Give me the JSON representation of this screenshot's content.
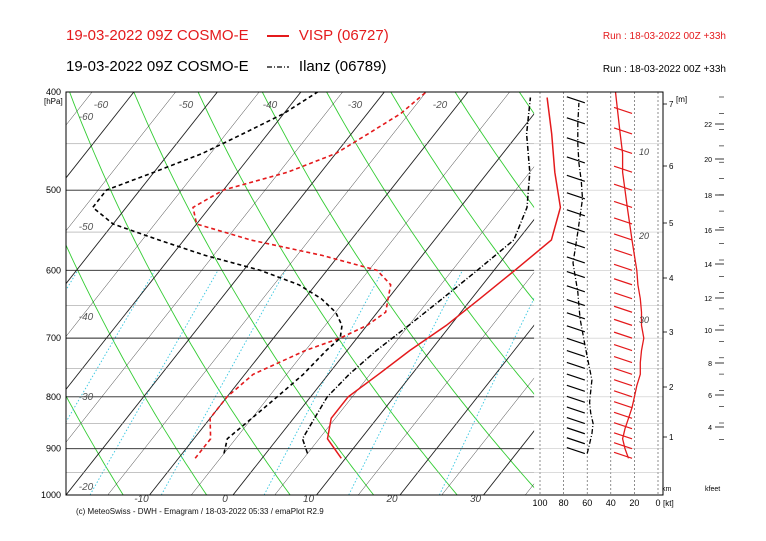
{
  "header": {
    "line1_left": "19-03-2022 09Z COSMO-E",
    "line1_station": "VISP (06727)",
    "line1_run": "Run : 18-03-2022 00Z +33h",
    "line2_left": "19-03-2022 09Z COSMO-E",
    "line2_station": "Ilanz (06789)",
    "line2_run": "Run : 18-03-2022 00Z +33h",
    "colors": {
      "visp": "#e41a1c",
      "ilanz": "#000000"
    }
  },
  "footer": "(c) MeteoSwiss - DWH - Emagram / 18-03-2022  05:33 / emaPlot R2.9",
  "chart_data": {
    "type": "line",
    "ylabel": "[hPa]",
    "ylim": [
      1000,
      400
    ],
    "pressure_ticks": [
      "400",
      "500",
      "600",
      "700",
      "800",
      "900",
      "1000"
    ],
    "pressure_values": [
      400,
      500,
      600,
      700,
      800,
      900,
      1000
    ],
    "temperature_ticks": [
      "-10",
      "0",
      "10",
      "20",
      "30"
    ],
    "temperature_values": [
      -10,
      0,
      10,
      20,
      30
    ],
    "upper_temperature_labels": [
      "-60",
      "-50",
      "-40",
      "-30",
      "-20"
    ],
    "mixing_ratio_labels": [
      "10",
      "20",
      "30"
    ],
    "km_axis": {
      "label": "[m]",
      "bottom_label": "km",
      "ticks": [
        "1",
        "2",
        "3",
        "4",
        "5",
        "6",
        "7"
      ]
    },
    "kfeet_axis": {
      "label": "kfeet",
      "ticks": [
        "4",
        "6",
        "8",
        "10",
        "12",
        "14",
        "16",
        "18",
        "20",
        "22"
      ]
    },
    "wind_axis": {
      "label": "[kt]",
      "ticks": [
        "100",
        "80",
        "60",
        "40",
        "20",
        "0"
      ]
    },
    "series": [
      {
        "name": "VISP (06727)",
        "role": "temperature",
        "color": "#e41a1c",
        "style": "solid",
        "points": [
          [
            920,
            9.5
          ],
          [
            880,
            6.0
          ],
          [
            840,
            4.5
          ],
          [
            800,
            4.5
          ],
          [
            760,
            6.0
          ],
          [
            720,
            7.5
          ],
          [
            680,
            9.5
          ],
          [
            640,
            11.0
          ],
          [
            600,
            12.5
          ],
          [
            560,
            14.0
          ],
          [
            520,
            12.0
          ],
          [
            480,
            8.0
          ],
          [
            440,
            4.0
          ],
          [
            405,
            0.0
          ]
        ]
      },
      {
        "name": "VISP (06727)",
        "role": "dewpoint",
        "color": "#e41a1c",
        "style": "dashed",
        "points": [
          [
            920,
            -8.0
          ],
          [
            880,
            -8.0
          ],
          [
            840,
            -10.0
          ],
          [
            800,
            -10.0
          ],
          [
            760,
            -9.0
          ],
          [
            720,
            -5.0
          ],
          [
            700,
            -2.0
          ],
          [
            680,
            0.0
          ],
          [
            660,
            1.0
          ],
          [
            640,
            0.0
          ],
          [
            620,
            -1.0
          ],
          [
            600,
            -4.0
          ],
          [
            580,
            -12.0
          ],
          [
            560,
            -22.0
          ],
          [
            540,
            -30.0
          ],
          [
            520,
            -32.0
          ],
          [
            500,
            -30.0
          ],
          [
            480,
            -24.0
          ],
          [
            460,
            -20.0
          ],
          [
            440,
            -18.0
          ],
          [
            420,
            -16.0
          ],
          [
            400,
            -15.0
          ]
        ]
      },
      {
        "name": "Ilanz (06789)",
        "role": "temperature",
        "color": "#000000",
        "style": "dashdot",
        "points": [
          [
            910,
            5.0
          ],
          [
            880,
            3.0
          ],
          [
            840,
            2.5
          ],
          [
            800,
            2.0
          ],
          [
            760,
            2.5
          ],
          [
            720,
            3.5
          ],
          [
            680,
            5.0
          ],
          [
            640,
            6.5
          ],
          [
            600,
            8.0
          ],
          [
            560,
            9.5
          ],
          [
            520,
            8.0
          ],
          [
            480,
            5.0
          ],
          [
            440,
            1.0
          ],
          [
            405,
            -2.0
          ]
        ]
      },
      {
        "name": "Ilanz (06789)",
        "role": "dewpoint",
        "color": "#000000",
        "style": "dashed",
        "points": [
          [
            910,
            -5.0
          ],
          [
            880,
            -6.0
          ],
          [
            840,
            -5.0
          ],
          [
            800,
            -4.0
          ],
          [
            760,
            -3.0
          ],
          [
            720,
            -2.5
          ],
          [
            700,
            -2.0
          ],
          [
            680,
            -3.0
          ],
          [
            660,
            -5.0
          ],
          [
            640,
            -8.0
          ],
          [
            620,
            -12.0
          ],
          [
            600,
            -18.0
          ],
          [
            580,
            -26.0
          ],
          [
            560,
            -33.0
          ],
          [
            540,
            -40.0
          ],
          [
            520,
            -44.0
          ],
          [
            500,
            -44.0
          ],
          [
            480,
            -40.0
          ],
          [
            460,
            -36.0
          ],
          [
            440,
            -33.0
          ],
          [
            420,
            -30.0
          ],
          [
            400,
            -28.0
          ]
        ]
      }
    ],
    "wind_profile": {
      "visp_color": "#e41a1c",
      "ilanz_color": "#000000",
      "visp_kt": [
        [
          920,
          25
        ],
        [
          900,
          28
        ],
        [
          880,
          30
        ],
        [
          860,
          28
        ],
        [
          840,
          25
        ],
        [
          820,
          22
        ],
        [
          800,
          20
        ],
        [
          780,
          18
        ],
        [
          760,
          15
        ],
        [
          740,
          15
        ],
        [
          720,
          14
        ],
        [
          700,
          12
        ],
        [
          680,
          14
        ],
        [
          660,
          14
        ],
        [
          640,
          15
        ],
        [
          620,
          17
        ],
        [
          600,
          18
        ],
        [
          580,
          20
        ],
        [
          560,
          22
        ],
        [
          540,
          24
        ],
        [
          520,
          26
        ],
        [
          500,
          28
        ],
        [
          480,
          30
        ],
        [
          460,
          30
        ],
        [
          440,
          32
        ],
        [
          420,
          34
        ],
        [
          400,
          36
        ]
      ],
      "ilanz_kt": [
        [
          910,
          60
        ],
        [
          890,
          58
        ],
        [
          870,
          56
        ],
        [
          850,
          55
        ],
        [
          830,
          57
        ],
        [
          810,
          58
        ],
        [
          790,
          57
        ],
        [
          770,
          56
        ],
        [
          750,
          58
        ],
        [
          730,
          60
        ],
        [
          710,
          62
        ],
        [
          690,
          64
        ],
        [
          670,
          66
        ],
        [
          650,
          67
        ],
        [
          630,
          68
        ],
        [
          610,
          70
        ],
        [
          590,
          72
        ],
        [
          570,
          70
        ],
        [
          550,
          68
        ],
        [
          530,
          66
        ],
        [
          510,
          64
        ],
        [
          490,
          65
        ],
        [
          470,
          67
        ],
        [
          450,
          68
        ],
        [
          430,
          68
        ],
        [
          410,
          67
        ]
      ]
    }
  }
}
